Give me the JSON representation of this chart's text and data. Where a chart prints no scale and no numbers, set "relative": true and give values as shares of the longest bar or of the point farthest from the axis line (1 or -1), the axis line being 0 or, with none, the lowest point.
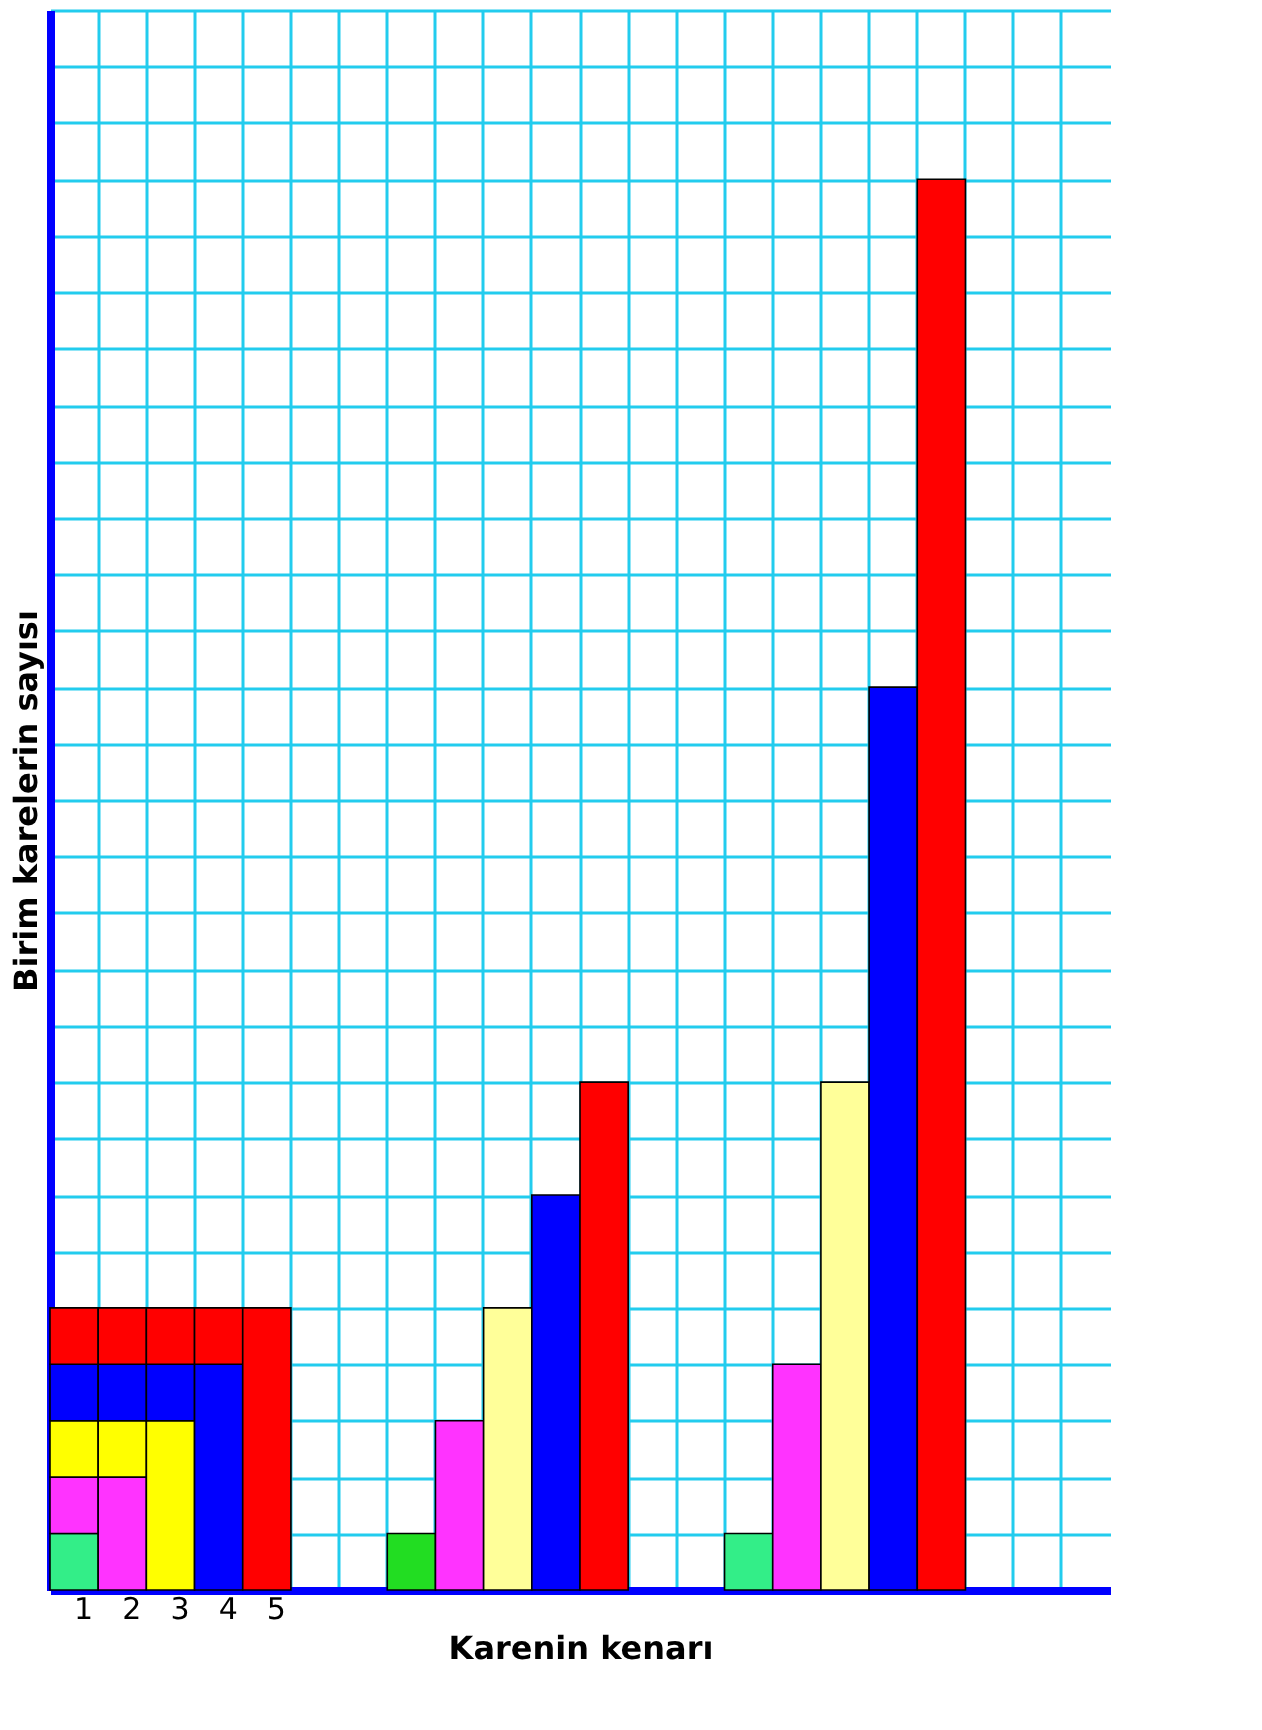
{
  "chart_data": {
    "type": "bar",
    "stacked": true,
    "relative": true,
    "xlabel": "Karenin kenarı",
    "ylabel": "Birim karelerin sayısı",
    "categories": [
      "1",
      "2",
      "3",
      "4",
      "5",
      null,
      null,
      null,
      null,
      null,
      null,
      null,
      null,
      null,
      null,
      null,
      null,
      null,
      null,
      null,
      null,
      null
    ],
    "series": [
      {
        "color": "#33ee88",
        "values": [
          0.04,
          null,
          null,
          null,
          null,
          null,
          null,
          null,
          null,
          null,
          null,
          null,
          null,
          null,
          0.04,
          null,
          null,
          null,
          null,
          null,
          null,
          null
        ]
      },
      {
        "color": "#22dd22",
        "values": [
          null,
          null,
          null,
          null,
          null,
          null,
          null,
          0.04,
          null,
          null,
          null,
          null,
          null,
          null,
          null,
          null,
          null,
          null,
          null,
          null,
          null,
          null
        ]
      },
      {
        "color": "#ff33ff",
        "values": [
          0.04,
          0.08,
          null,
          null,
          null,
          null,
          null,
          null,
          0.12,
          null,
          null,
          null,
          null,
          null,
          null,
          0.16,
          null,
          null,
          null,
          null,
          null,
          null
        ]
      },
      {
        "color": "#ffff00",
        "values": [
          0.04,
          0.04,
          0.12,
          null,
          null,
          null,
          null,
          null,
          null,
          null,
          null,
          null,
          null,
          null,
          null,
          null,
          null,
          null,
          null,
          null,
          null,
          null
        ]
      },
      {
        "color": "#ffff99",
        "values": [
          null,
          null,
          null,
          null,
          null,
          null,
          null,
          null,
          null,
          0.2,
          null,
          null,
          null,
          null,
          null,
          null,
          0.36,
          null,
          null,
          null,
          null,
          null
        ]
      },
      {
        "color": "#0000ff",
        "values": [
          0.04,
          0.04,
          0.04,
          0.16,
          null,
          null,
          null,
          null,
          null,
          null,
          0.28,
          null,
          null,
          null,
          null,
          null,
          null,
          0.64,
          null,
          null,
          null,
          null
        ]
      },
      {
        "color": "#ff0000",
        "values": [
          0.04,
          0.04,
          0.04,
          0.04,
          0.2,
          null,
          null,
          null,
          null,
          null,
          null,
          0.36,
          null,
          null,
          null,
          null,
          null,
          null,
          1,
          null,
          null,
          null
        ]
      }
    ],
    "grid": true,
    "legend": false,
    "tick_labels": "x"
  }
}
